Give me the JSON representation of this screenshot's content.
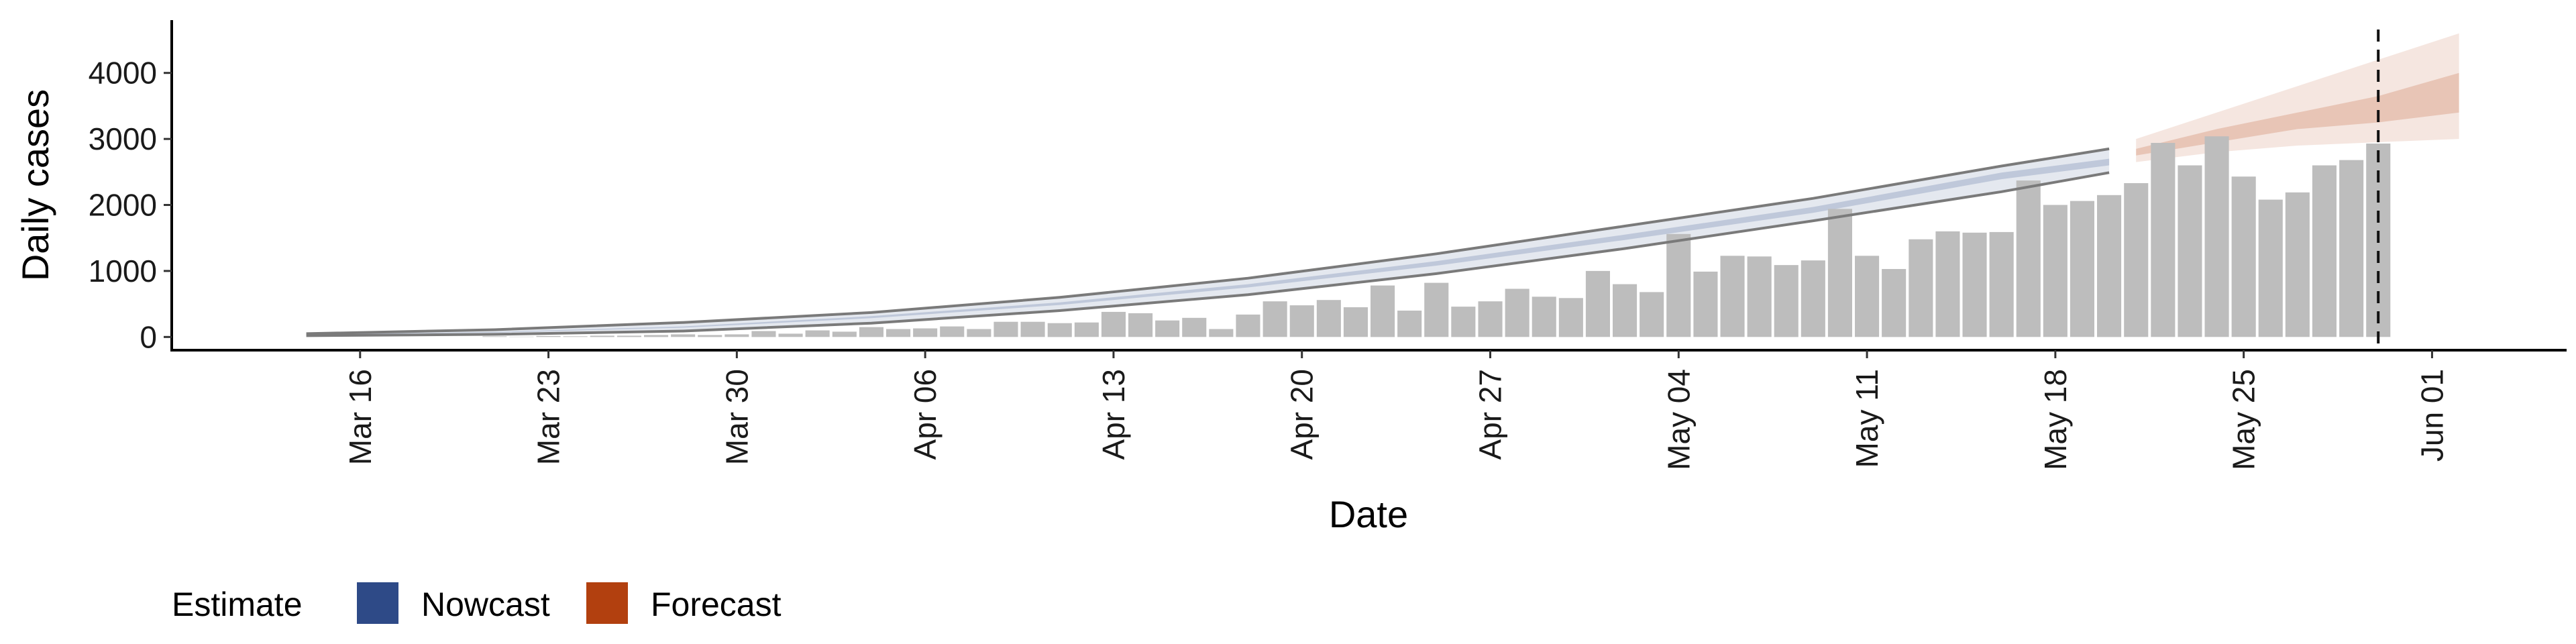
{
  "chart_data": {
    "type": "bar",
    "x_axis": {
      "label": "Date",
      "tick_labels": [
        "Mar 16",
        "Mar 23",
        "Mar 30",
        "Apr 06",
        "Apr 13",
        "Apr 20",
        "Apr 27",
        "May 04",
        "May 11",
        "May 18",
        "May 25",
        "Jun 01"
      ],
      "tick_dates": [
        "2020-03-16",
        "2020-03-23",
        "2020-03-30",
        "2020-04-06",
        "2020-04-13",
        "2020-04-20",
        "2020-04-27",
        "2020-05-04",
        "2020-05-11",
        "2020-05-18",
        "2020-05-25",
        "2020-06-01"
      ],
      "range": [
        "2020-03-09",
        "2020-06-06"
      ]
    },
    "y_axis": {
      "label": "Daily cases",
      "ticks": [
        0,
        1000,
        2000,
        3000,
        4000
      ],
      "range": [
        -200,
        4800
      ]
    },
    "grid": false,
    "reported_cases": {
      "color": "#bdbdbd",
      "dates": [
        "2020-03-21",
        "2020-03-22",
        "2020-03-23",
        "2020-03-24",
        "2020-03-25",
        "2020-03-26",
        "2020-03-27",
        "2020-03-28",
        "2020-03-29",
        "2020-03-30",
        "2020-03-31",
        "2020-04-01",
        "2020-04-02",
        "2020-04-03",
        "2020-04-04",
        "2020-04-05",
        "2020-04-06",
        "2020-04-07",
        "2020-04-08",
        "2020-04-09",
        "2020-04-10",
        "2020-04-11",
        "2020-04-12",
        "2020-04-13",
        "2020-04-14",
        "2020-04-15",
        "2020-04-16",
        "2020-04-17",
        "2020-04-18",
        "2020-04-19",
        "2020-04-20",
        "2020-04-21",
        "2020-04-22",
        "2020-04-23",
        "2020-04-24",
        "2020-04-25",
        "2020-04-26",
        "2020-04-27",
        "2020-04-28",
        "2020-04-29",
        "2020-04-30",
        "2020-05-01",
        "2020-05-02",
        "2020-05-03",
        "2020-05-04",
        "2020-05-05",
        "2020-05-06",
        "2020-05-07",
        "2020-05-08",
        "2020-05-09",
        "2020-05-10",
        "2020-05-11",
        "2020-05-12",
        "2020-05-13",
        "2020-05-14",
        "2020-05-15",
        "2020-05-16",
        "2020-05-17",
        "2020-05-18",
        "2020-05-19",
        "2020-05-20",
        "2020-05-21",
        "2020-05-22",
        "2020-05-23",
        "2020-05-24",
        "2020-05-25",
        "2020-05-26",
        "2020-05-27",
        "2020-05-28",
        "2020-05-29",
        "2020-05-30"
      ],
      "values": [
        10,
        5,
        15,
        10,
        20,
        20,
        30,
        40,
        30,
        40,
        90,
        50,
        100,
        80,
        150,
        120,
        130,
        160,
        120,
        230,
        230,
        210,
        220,
        380,
        360,
        250,
        290,
        120,
        340,
        540,
        480,
        560,
        450,
        780,
        400,
        820,
        460,
        540,
        730,
        610,
        590,
        1000,
        800,
        680,
        1560,
        990,
        1230,
        1220,
        1090,
        1160,
        1940,
        1230,
        1030,
        1480,
        1600,
        1580,
        1590,
        2370,
        2000,
        2060,
        2150,
        2330,
        2940,
        2600,
        3040,
        2430,
        2080,
        2190,
        2600,
        2680,
        2930
      ]
    },
    "series": [
      {
        "name": "Nowcast",
        "color": "#2e4a87",
        "dates": [
          "2020-03-14",
          "2020-03-21",
          "2020-03-28",
          "2020-04-04",
          "2020-04-11",
          "2020-04-18",
          "2020-04-25",
          "2020-05-02",
          "2020-05-09",
          "2020-05-16",
          "2020-05-20"
        ],
        "lower_90": [
          20,
          40,
          90,
          210,
          400,
          640,
          960,
          1340,
          1760,
          2200,
          2490
        ],
        "lower_50": [
          35,
          65,
          140,
          285,
          485,
          750,
          1080,
          1470,
          1880,
          2390,
          2600
        ],
        "upper_50": [
          40,
          75,
          160,
          315,
          525,
          800,
          1150,
          1550,
          1970,
          2490,
          2700
        ],
        "upper_90": [
          50,
          110,
          220,
          370,
          600,
          890,
          1260,
          1680,
          2100,
          2590,
          2850
        ]
      },
      {
        "name": "Forecast",
        "color": "#b2400f",
        "dates": [
          "2020-05-21",
          "2020-05-24",
          "2020-05-27",
          "2020-05-30",
          "2020-06-02"
        ],
        "lower_90": [
          2650,
          2800,
          2900,
          2950,
          3000
        ],
        "lower_50": [
          2750,
          2950,
          3150,
          3250,
          3400
        ],
        "upper_50": [
          2850,
          3150,
          3400,
          3650,
          4000
        ],
        "upper_90": [
          3000,
          3400,
          3800,
          4200,
          4600
        ]
      }
    ],
    "annotations": [
      {
        "type": "vline",
        "date": "2020-05-30",
        "style": "dashed"
      }
    ],
    "legend": {
      "title": "Estimate",
      "placement": "bottom-left",
      "entries": [
        {
          "label": "Nowcast",
          "color": "#2e4a87"
        },
        {
          "label": "Forecast",
          "color": "#b2400f"
        }
      ]
    }
  }
}
